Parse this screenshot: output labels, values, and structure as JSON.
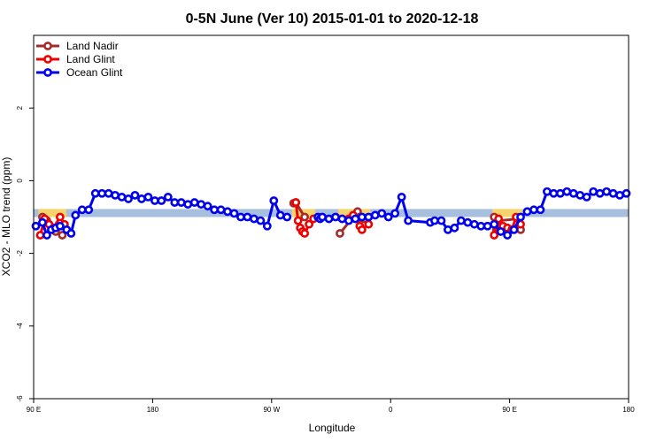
{
  "chart_data": {
    "type": "line",
    "title": "0-5N June (Ver 10)   2015-01-01 to 2020-12-18",
    "xlabel": "Longitude",
    "ylabel": "XCO2 - MLO trend (ppm)",
    "xlim": [
      -90,
      180
    ],
    "ylim": [
      -6,
      4
    ],
    "x_ticks": [
      {
        "value": -90,
        "label": "90 E"
      },
      {
        "value": -36,
        "label": "180"
      },
      {
        "value": 18,
        "label": "90 W"
      },
      {
        "value": 72,
        "label": "0"
      },
      {
        "value": 126,
        "label": "90 E"
      },
      {
        "value": 180,
        "label": "180"
      }
    ],
    "y_ticks": [
      -6,
      -4,
      -2,
      0,
      2
    ],
    "band": {
      "y_low": -1.0,
      "y_high": -0.78,
      "color": "#a7bfde",
      "highlight_color": "#f7d36b"
    },
    "legend_position": "top-left",
    "series": [
      {
        "name": "Land Nadir",
        "color": "#a52a2a",
        "x": [
          -86,
          -84,
          -80,
          -77,
          28,
          29,
          33,
          49,
          57,
          58,
          60,
          119,
          120,
          121,
          130,
          131
        ],
        "y": [
          -1.0,
          -1.1,
          -1.4,
          -1.5,
          -0.62,
          -0.6,
          -1.0,
          -1.45,
          -0.85,
          -1.0,
          -1.05,
          -1.0,
          -1.35,
          -1.1,
          -1.05,
          -1.35
        ]
      },
      {
        "name": "Land Glint",
        "color": "#ee0000",
        "x": [
          -87,
          -85,
          -83,
          -81,
          -78,
          -76,
          29,
          30,
          31,
          32,
          33,
          35,
          37,
          53,
          55,
          57,
          58,
          59,
          62,
          119,
          121,
          123,
          125,
          127,
          129,
          131
        ],
        "y": [
          -1.5,
          -1.05,
          -1.2,
          -1.3,
          -1.0,
          -1.2,
          -0.6,
          -1.1,
          -1.3,
          -1.4,
          -1.45,
          -1.2,
          -1.05,
          -1.05,
          -0.95,
          -1.05,
          -1.25,
          -1.35,
          -1.2,
          -1.5,
          -1.05,
          -1.25,
          -1.3,
          -1.35,
          -1.0,
          -1.2
        ]
      },
      {
        "name": "Ocean Glint",
        "color": "#0000ee",
        "x": [
          -89,
          -86,
          -84,
          -82,
          -80,
          -78,
          -75,
          -73,
          -71,
          -68,
          -65,
          -62,
          -59,
          -56,
          -53,
          -50,
          -47,
          -44,
          -41,
          -38,
          -35,
          -32,
          -29,
          -26,
          -23,
          -20,
          -17,
          -14,
          -11,
          -8,
          -5,
          -2,
          1,
          4,
          7,
          10,
          13,
          16,
          19,
          22,
          25,
          39,
          40,
          41,
          44,
          47,
          50,
          53,
          56,
          59,
          62,
          65,
          68,
          71,
          74,
          77,
          80,
          90,
          92,
          95,
          98,
          101,
          104,
          107,
          110,
          113,
          116,
          119,
          122,
          125,
          128,
          131,
          134,
          137,
          140,
          143,
          146,
          149,
          152,
          155,
          158,
          161,
          164,
          167,
          170,
          173,
          176,
          179
        ],
        "y": [
          -1.25,
          -1.15,
          -1.5,
          -1.35,
          -1.3,
          -1.25,
          -1.35,
          -1.45,
          -0.95,
          -0.8,
          -0.8,
          -0.35,
          -0.35,
          -0.35,
          -0.4,
          -0.45,
          -0.5,
          -0.4,
          -0.5,
          -0.45,
          -0.55,
          -0.55,
          -0.45,
          -0.6,
          -0.6,
          -0.65,
          -0.6,
          -0.65,
          -0.7,
          -0.8,
          -0.8,
          -0.85,
          -0.9,
          -1.0,
          -1.0,
          -1.05,
          -1.1,
          -1.25,
          -0.55,
          -0.95,
          -1.0,
          -1.0,
          -1.05,
          -1.0,
          -1.05,
          -1.0,
          -1.05,
          -1.1,
          -1.05,
          -1.0,
          -1.0,
          -0.95,
          -0.9,
          -1.0,
          -0.9,
          -0.45,
          -1.1,
          -1.15,
          -1.1,
          -1.1,
          -1.35,
          -1.3,
          -1.1,
          -1.15,
          -1.2,
          -1.25,
          -1.25,
          -1.2,
          -1.4,
          -1.5,
          -1.35,
          -1.0,
          -0.85,
          -0.8,
          -0.8,
          -0.3,
          -0.35,
          -0.35,
          -0.3,
          -0.35,
          -0.4,
          -0.45,
          -0.3,
          -0.35,
          -0.3,
          -0.35,
          -0.4,
          -0.35
        ]
      }
    ]
  }
}
